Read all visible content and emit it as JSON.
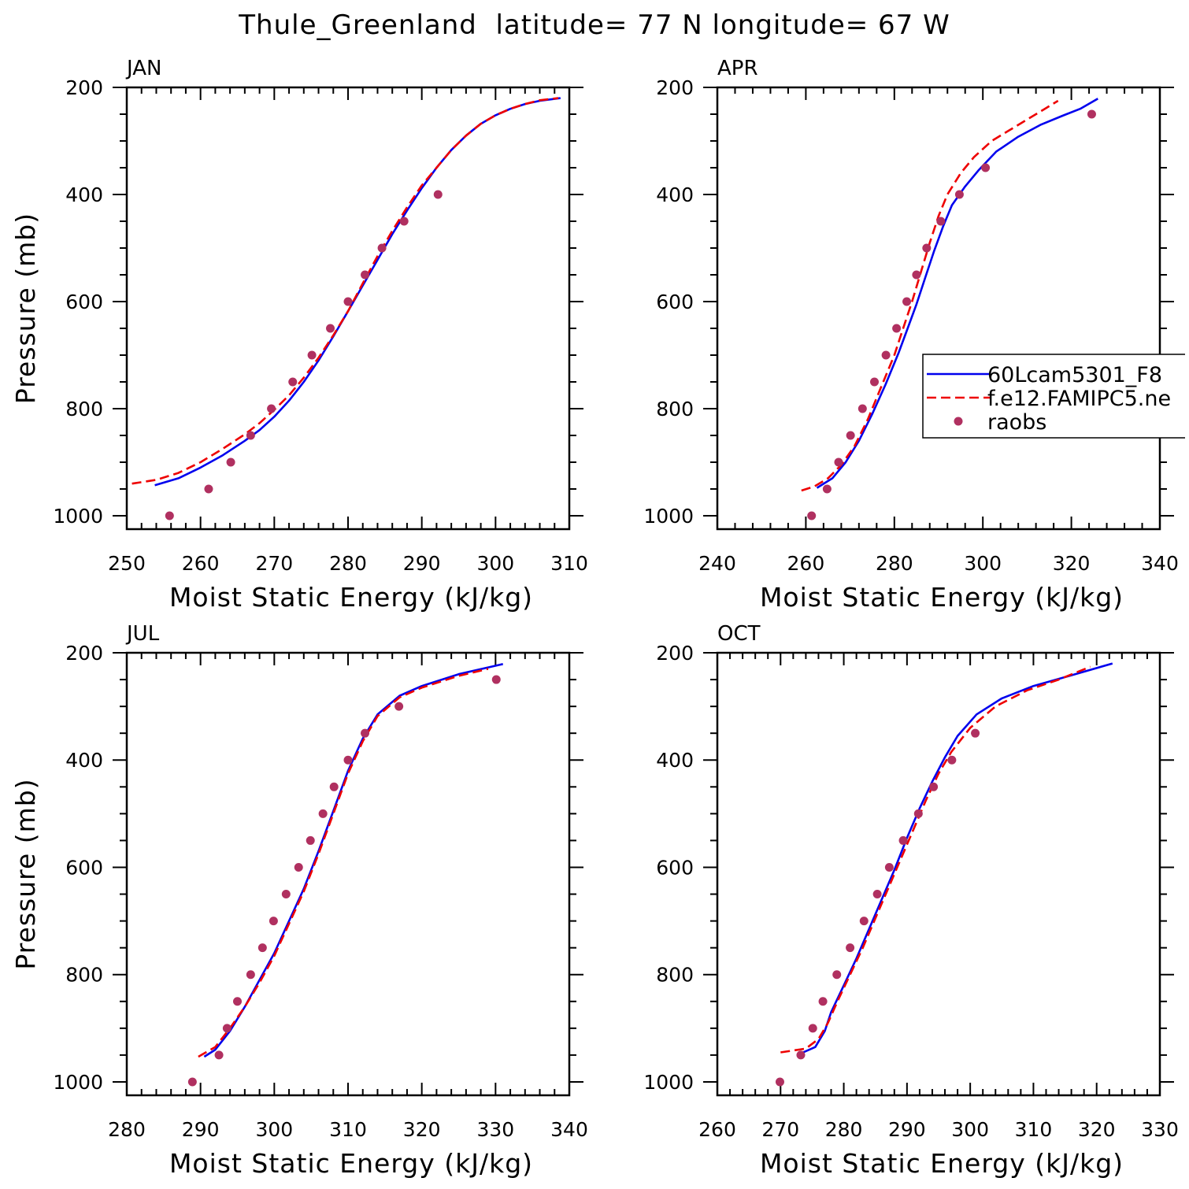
{
  "figure": {
    "title": "Thule_Greenland  latitude= 77 N longitude= 67 W"
  },
  "chart_data": [
    {
      "type": "line",
      "panel": "JAN",
      "xlabel": "Moist Static Energy (kJ/kg)",
      "ylabel": "Pressure (mb)",
      "xlim": [
        250,
        310
      ],
      "ylim": [
        1025,
        200
      ],
      "y_inverted": true,
      "xticks": [
        250,
        260,
        270,
        280,
        290,
        300,
        310
      ],
      "yticks": [
        200,
        400,
        600,
        800,
        1000
      ],
      "series": [
        {
          "name": "60Lcam5301_F8",
          "style": "solid",
          "color": "#0000ee",
          "points": [
            [
              253.8,
              943
            ],
            [
              257,
              930
            ],
            [
              260,
              910
            ],
            [
              263,
              887
            ],
            [
              266,
              860
            ],
            [
              268,
              840
            ],
            [
              270,
              815
            ],
            [
              272,
              785
            ],
            [
              274,
              750
            ],
            [
              276,
              710
            ],
            [
              278,
              665
            ],
            [
              280,
              618
            ],
            [
              282,
              570
            ],
            [
              284,
              522
            ],
            [
              286,
              474
            ],
            [
              288,
              430
            ],
            [
              290,
              388
            ],
            [
              292,
              350
            ],
            [
              294,
              317
            ],
            [
              296,
              290
            ],
            [
              298,
              268
            ],
            [
              300,
              252
            ],
            [
              302,
              240
            ],
            [
              304,
              231
            ],
            [
              306,
              225
            ],
            [
              308.8,
              220
            ]
          ]
        },
        {
          "name": "f.e12.FAMIPC5.ne",
          "style": "dashed",
          "color": "#ee0000",
          "points": [
            [
              250.7,
              940
            ],
            [
              254,
              933
            ],
            [
              257,
              920
            ],
            [
              260,
              900
            ],
            [
              263,
              875
            ],
            [
              266,
              848
            ],
            [
              268,
              827
            ],
            [
              270,
              802
            ],
            [
              272,
              775
            ],
            [
              274,
              742
            ],
            [
              276,
              705
            ],
            [
              278,
              663
            ],
            [
              280,
              618
            ],
            [
              282,
              566
            ],
            [
              284,
              515
            ],
            [
              286,
              468
            ],
            [
              288,
              424
            ],
            [
              290,
              383
            ],
            [
              292,
              350
            ],
            [
              294,
              317
            ],
            [
              296,
              290
            ],
            [
              298,
              268
            ],
            [
              300,
              252
            ],
            [
              302,
              240
            ],
            [
              304,
              231
            ],
            [
              306,
              224
            ],
            [
              308.5,
              220
            ]
          ]
        },
        {
          "name": "raobs",
          "style": "markers",
          "color": "#b03060",
          "points": [
            [
              255.8,
              1000
            ],
            [
              261.1,
              950
            ],
            [
              264.1,
              900
            ],
            [
              266.8,
              850
            ],
            [
              269.6,
              800
            ],
            [
              272.5,
              750
            ],
            [
              275.1,
              700
            ],
            [
              277.6,
              650
            ],
            [
              280,
              600
            ],
            [
              282.3,
              550
            ],
            [
              284.6,
              500
            ],
            [
              287.6,
              450
            ],
            [
              292.2,
              400
            ]
          ]
        }
      ]
    },
    {
      "type": "line",
      "panel": "APR",
      "xlabel": "Moist Static Energy (kJ/kg)",
      "ylabel": "",
      "xlim": [
        240,
        340
      ],
      "ylim": [
        1025,
        200
      ],
      "y_inverted": true,
      "xticks": [
        240,
        260,
        280,
        300,
        320,
        340
      ],
      "yticks": [
        200,
        400,
        600,
        800,
        1000
      ],
      "legend": {
        "position": "right",
        "entries": [
          "60Lcam5301_F8",
          "f.e12.FAMIPC5.ne",
          "raobs"
        ]
      },
      "series": [
        {
          "name": "60Lcam5301_F8",
          "style": "solid",
          "color": "#0000ee",
          "points": [
            [
              262.5,
              948
            ],
            [
              266,
              930
            ],
            [
              269,
              900
            ],
            [
              272,
              860
            ],
            [
              275,
              810
            ],
            [
              278,
              755
            ],
            [
              281,
              695
            ],
            [
              283,
              650
            ],
            [
              285,
              605
            ],
            [
              287,
              555
            ],
            [
              289,
              505
            ],
            [
              291,
              460
            ],
            [
              293,
              420
            ],
            [
              296,
              385
            ],
            [
              299,
              355
            ],
            [
              303,
              320
            ],
            [
              308,
              292
            ],
            [
              313,
              270
            ],
            [
              318,
              253
            ],
            [
              322,
              240
            ],
            [
              326,
              221
            ]
          ]
        },
        {
          "name": "f.e12.FAMIPC5.ne",
          "style": "dashed",
          "color": "#ee0000",
          "points": [
            [
              259,
              953
            ],
            [
              262,
              945
            ],
            [
              265,
              930
            ],
            [
              268,
              905
            ],
            [
              271,
              870
            ],
            [
              274,
              820
            ],
            [
              277,
              760
            ],
            [
              280,
              700
            ],
            [
              282,
              650
            ],
            [
              284,
              600
            ],
            [
              286,
              545
            ],
            [
              288,
              490
            ],
            [
              290,
              440
            ],
            [
              292,
              400
            ],
            [
              295,
              360
            ],
            [
              298,
              330
            ],
            [
              302,
              300
            ],
            [
              306,
              280
            ],
            [
              310,
              260
            ],
            [
              314,
              240
            ],
            [
              317,
              225
            ]
          ]
        },
        {
          "name": "raobs",
          "style": "markers",
          "color": "#b03060",
          "points": [
            [
              261.3,
              1000
            ],
            [
              264.8,
              950
            ],
            [
              267.4,
              900
            ],
            [
              270.1,
              850
            ],
            [
              272.8,
              800
            ],
            [
              275.5,
              750
            ],
            [
              278.1,
              700
            ],
            [
              280.5,
              650
            ],
            [
              282.8,
              600
            ],
            [
              285,
              550
            ],
            [
              287.3,
              500
            ],
            [
              290.5,
              450
            ],
            [
              294.7,
              400
            ],
            [
              300.6,
              350
            ],
            [
              324.6,
              250
            ]
          ]
        }
      ]
    },
    {
      "type": "line",
      "panel": "JUL",
      "xlabel": "Moist Static Energy (kJ/kg)",
      "ylabel": "Pressure (mb)",
      "xlim": [
        280,
        340
      ],
      "ylim": [
        1025,
        200
      ],
      "y_inverted": true,
      "xticks": [
        280,
        290,
        300,
        310,
        320,
        330,
        340
      ],
      "yticks": [
        200,
        400,
        600,
        800,
        1000
      ],
      "series": [
        {
          "name": "60Lcam5301_F8",
          "style": "solid",
          "color": "#0000ee",
          "points": [
            [
              290.5,
              953
            ],
            [
              292,
              940
            ],
            [
              294,
              905
            ],
            [
              296,
              860
            ],
            [
              298,
              810
            ],
            [
              300,
              760
            ],
            [
              302,
              700
            ],
            [
              304,
              640
            ],
            [
              306,
              570
            ],
            [
              308,
              495
            ],
            [
              310,
              420
            ],
            [
              312,
              360
            ],
            [
              314,
              315
            ],
            [
              317,
              280
            ],
            [
              320,
              262
            ],
            [
              325,
              240
            ],
            [
              331,
              221
            ]
          ]
        },
        {
          "name": "f.e12.FAMIPC5.ne",
          "style": "dashed",
          "color": "#ee0000",
          "points": [
            [
              289.7,
              953
            ],
            [
              292,
              935
            ],
            [
              294,
              900
            ],
            [
              296,
              860
            ],
            [
              298,
              815
            ],
            [
              300,
              765
            ],
            [
              302,
              705
            ],
            [
              304,
              645
            ],
            [
              306,
              575
            ],
            [
              308,
              500
            ],
            [
              310,
              425
            ],
            [
              312,
              365
            ],
            [
              314,
              318
            ],
            [
              317,
              283
            ],
            [
              320,
              265
            ],
            [
              325,
              243
            ],
            [
              329,
              230
            ]
          ]
        },
        {
          "name": "raobs",
          "style": "markers",
          "color": "#b03060",
          "points": [
            [
              288.9,
              1000
            ],
            [
              292.5,
              950
            ],
            [
              293.6,
              900
            ],
            [
              295,
              850
            ],
            [
              296.8,
              800
            ],
            [
              298.4,
              750
            ],
            [
              299.9,
              700
            ],
            [
              301.6,
              650
            ],
            [
              303.3,
              600
            ],
            [
              304.9,
              550
            ],
            [
              306.6,
              500
            ],
            [
              308.1,
              450
            ],
            [
              310,
              400
            ],
            [
              312.3,
              350
            ],
            [
              316.9,
              300
            ],
            [
              330.1,
              250
            ]
          ]
        }
      ]
    },
    {
      "type": "line",
      "panel": "OCT",
      "xlabel": "Moist Static Energy (kJ/kg)",
      "ylabel": "",
      "xlim": [
        260,
        330
      ],
      "ylim": [
        1025,
        200
      ],
      "y_inverted": true,
      "xticks": [
        260,
        270,
        280,
        290,
        300,
        310,
        320,
        330
      ],
      "yticks": [
        200,
        400,
        600,
        800,
        1000
      ],
      "series": [
        {
          "name": "60Lcam5301_F8",
          "style": "solid",
          "color": "#0000ee",
          "points": [
            [
              273,
              948
            ],
            [
              275.5,
              935
            ],
            [
              277,
              905
            ],
            [
              278,
              870
            ],
            [
              280,
              820
            ],
            [
              282,
              770
            ],
            [
              284,
              715
            ],
            [
              286,
              660
            ],
            [
              288,
              605
            ],
            [
              290,
              545
            ],
            [
              292,
              490
            ],
            [
              294,
              440
            ],
            [
              296,
              395
            ],
            [
              298,
              355
            ],
            [
              301,
              315
            ],
            [
              305,
              285
            ],
            [
              310,
              262
            ],
            [
              316,
              242
            ],
            [
              322.5,
              220
            ]
          ]
        },
        {
          "name": "f.e12.FAMIPC5.ne",
          "style": "dashed",
          "color": "#ee0000",
          "points": [
            [
              270,
              945
            ],
            [
              274,
              938
            ],
            [
              276,
              920
            ],
            [
              277.5,
              890
            ],
            [
              279,
              850
            ],
            [
              281,
              800
            ],
            [
              283,
              750
            ],
            [
              285,
              695
            ],
            [
              287,
              640
            ],
            [
              289,
              585
            ],
            [
              291,
              530
            ],
            [
              293,
              475
            ],
            [
              295,
              425
            ],
            [
              297,
              385
            ],
            [
              300,
              340
            ],
            [
              304,
              300
            ],
            [
              309,
              270
            ],
            [
              314,
              250
            ],
            [
              319,
              226
            ]
          ]
        },
        {
          "name": "raobs",
          "style": "markers",
          "color": "#b03060",
          "points": [
            [
              269.9,
              1000
            ],
            [
              273.2,
              950
            ],
            [
              275.1,
              900
            ],
            [
              276.7,
              850
            ],
            [
              278.9,
              800
            ],
            [
              281,
              750
            ],
            [
              283.2,
              700
            ],
            [
              285.3,
              650
            ],
            [
              287.2,
              600
            ],
            [
              289.4,
              550
            ],
            [
              291.8,
              500
            ],
            [
              294.2,
              450
            ],
            [
              297.1,
              400
            ],
            [
              300.8,
              350
            ]
          ]
        }
      ]
    }
  ],
  "colors": {
    "model1": "#0000ee",
    "model2": "#ee0000",
    "obs": "#b03060"
  }
}
